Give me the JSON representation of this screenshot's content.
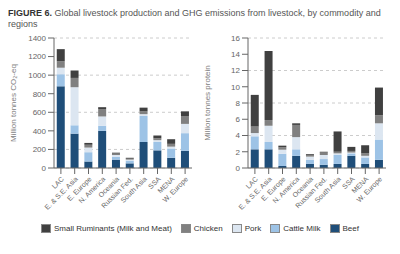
{
  "chart_data": [
    {
      "type": "bar",
      "title": "FIGURE 6.",
      "subtitle": " Global livestock production and GHG emissions from livestock, by commodity and regions",
      "y_label": "Million tonnes CO₂-eq",
      "stacked": true,
      "grid": true,
      "legend": "bottom",
      "categories": [
        "LAC",
        "E. & S.E. Asia",
        "E. Europe",
        "N. America",
        "Oceania",
        "Russian Fed.",
        "South Asia",
        "SSA",
        "MENA",
        "W. Europe"
      ],
      "ylim": [
        0,
        1400
      ],
      "yticks": [
        0,
        200,
        400,
        600,
        800,
        1000,
        1200,
        1400
      ],
      "series": [
        {
          "name": "Beef",
          "color": "#1f4e79",
          "values": [
            880,
            370,
            70,
            400,
            90,
            50,
            280,
            190,
            110,
            185
          ]
        },
        {
          "name": "Cattle Milk",
          "color": "#9dc3e6",
          "values": [
            130,
            90,
            100,
            55,
            30,
            30,
            280,
            90,
            100,
            190
          ]
        },
        {
          "name": "Pork",
          "color": "#dce6f1",
          "values": [
            70,
            410,
            50,
            100,
            20,
            10,
            20,
            20,
            20,
            100
          ]
        },
        {
          "name": "Chicken",
          "color": "#808080",
          "values": [
            70,
            100,
            30,
            80,
            15,
            10,
            30,
            20,
            30,
            80
          ]
        },
        {
          "name": "Small Ruminants (Milk and Meat)",
          "color": "#404040",
          "values": [
            130,
            80,
            20,
            20,
            10,
            10,
            40,
            30,
            50,
            55
          ]
        }
      ]
    },
    {
      "type": "bar",
      "y_label": "Million tonnes protein",
      "stacked": true,
      "grid": true,
      "categories": [
        "LAC",
        "E. & S.E. Asia",
        "E. Europe",
        "N. America",
        "Oceania",
        "Russian Fed.",
        "South Asia",
        "SSA",
        "MENA",
        "W. Europe"
      ],
      "ylim": [
        0,
        16
      ],
      "yticks": [
        0,
        2,
        4,
        6,
        8,
        10,
        12,
        14,
        16
      ],
      "series": [
        {
          "name": "Beef",
          "color": "#1f4e79",
          "values": [
            2.3,
            2.3,
            0.25,
            1.5,
            0.5,
            0.4,
            0.5,
            1.5,
            0.5,
            1.0
          ]
        },
        {
          "name": "Cattle Milk",
          "color": "#9dc3e6",
          "values": [
            1.6,
            0.9,
            1.5,
            0.8,
            0.5,
            0.7,
            1.1,
            0.3,
            0.8,
            2.5
          ]
        },
        {
          "name": "Pork",
          "color": "#dce6f1",
          "values": [
            0.4,
            2.0,
            0.5,
            1.5,
            0.4,
            0.5,
            0.2,
            0.1,
            0.2,
            2.0
          ]
        },
        {
          "name": "Chicken",
          "color": "#808080",
          "values": [
            0.8,
            0.7,
            0.3,
            1.5,
            0.2,
            0.3,
            0.2,
            0.2,
            0.3,
            1.0
          ]
        },
        {
          "name": "Small Ruminants (Milk and Meat)",
          "color": "#404040",
          "values": [
            3.9,
            8.5,
            0.2,
            0.2,
            0.1,
            0.1,
            2.5,
            0.5,
            1.0,
            3.4
          ]
        }
      ]
    }
  ]
}
